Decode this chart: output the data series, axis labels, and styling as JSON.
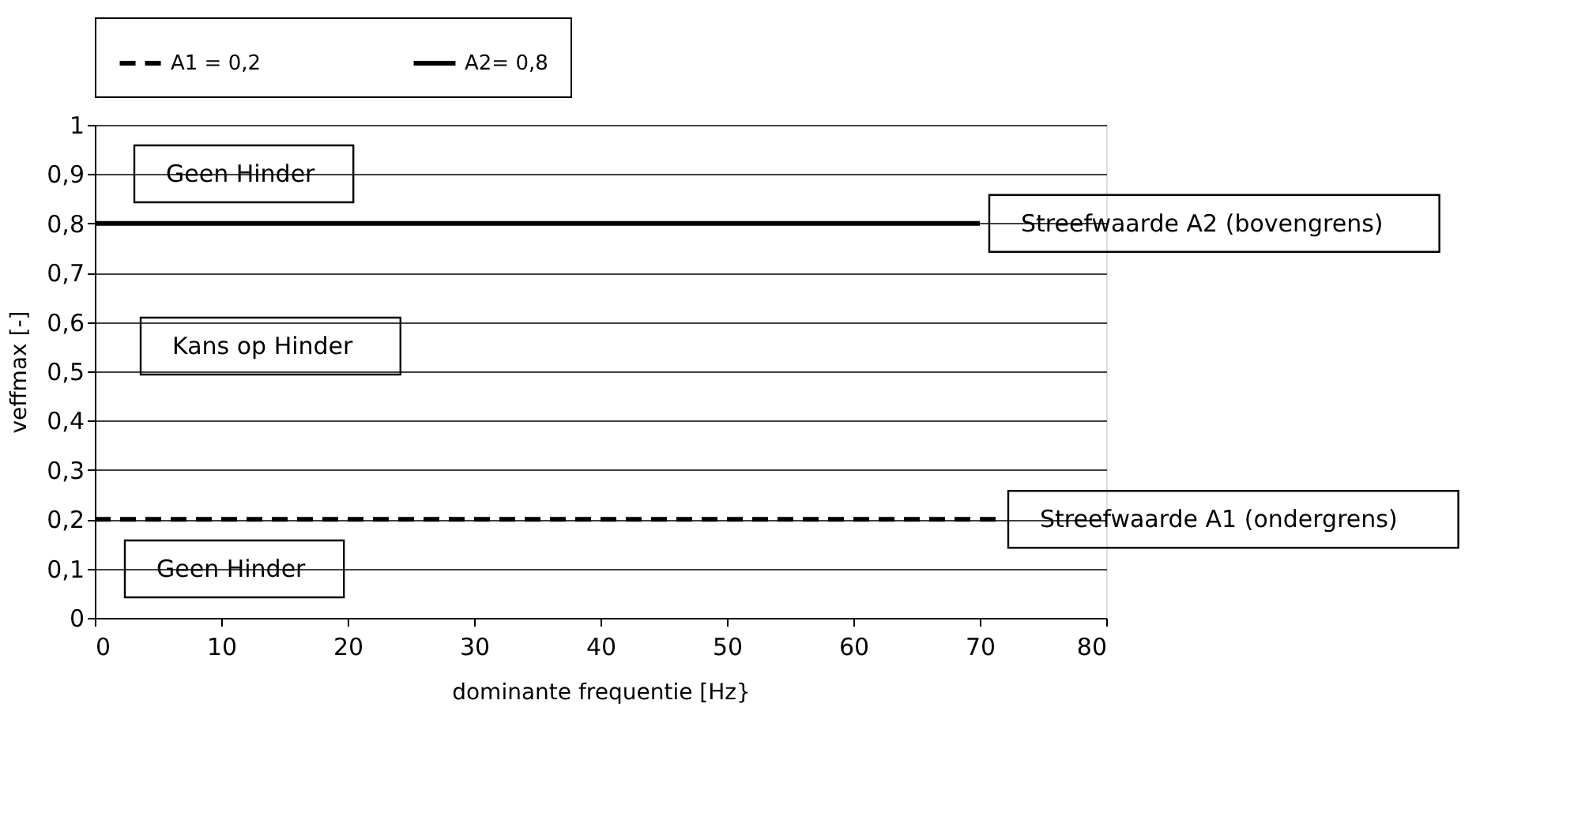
{
  "chart_data": {
    "type": "line",
    "xlabel": "dominante frequentie [Hz}",
    "ylabel": "veffmax [-]",
    "series": [
      {
        "name": "A1 = 0,2",
        "color": "#000000",
        "x": [
          0,
          71.5
        ],
        "values": [
          0.2,
          0.2
        ],
        "line_style": "dashed"
      },
      {
        "name": "A2= 0,8",
        "color": "#000000",
        "x": [
          0,
          70
        ],
        "values": [
          0.8,
          0.8
        ],
        "line_style": "solid"
      }
    ],
    "xlim": [
      0,
      80
    ],
    "xticks": [
      0,
      10,
      20,
      30,
      40,
      50,
      60,
      70,
      80
    ],
    "ylim": [
      0,
      1
    ],
    "yticks": [
      {
        "value": 0,
        "label": "0"
      },
      {
        "value": 0.1,
        "label": "0,1"
      },
      {
        "value": 0.2,
        "label": "0,2"
      },
      {
        "value": 0.3,
        "label": "0,3"
      },
      {
        "value": 0.4,
        "label": "0,4"
      },
      {
        "value": 0.5,
        "label": "0,5"
      },
      {
        "value": 0.6,
        "label": "0,6"
      },
      {
        "value": 0.7,
        "label": "0,7"
      },
      {
        "value": 0.8,
        "label": "0,8"
      },
      {
        "value": 0.9,
        "label": "0,9"
      },
      {
        "value": 1,
        "label": "1"
      }
    ],
    "annotations": [
      "Geen Hinder",
      {
        "text": "Streefwaarde A2 (bovengrens)",
        "x": 70,
        "y": 0.8
      },
      "Kans op Hinder",
      {
        "text": "Streefwaarde A1 (ondergrens)",
        "x": 71.5,
        "y": 0.2
      },
      "Geen Hinder"
    ],
    "grid": "y",
    "legend": "top",
    "marker": "none"
  }
}
